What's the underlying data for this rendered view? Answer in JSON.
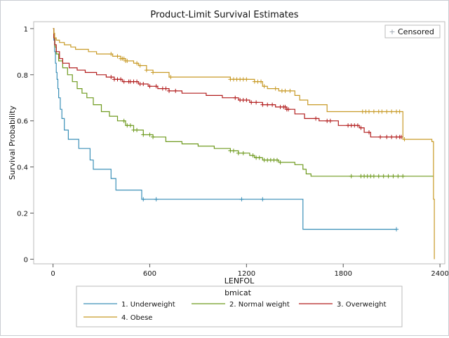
{
  "chart_data": {
    "type": "line",
    "step": true,
    "title": "Product-Limit Survival Estimates",
    "xlabel": "LENFOL",
    "ylabel": "Survival Probability",
    "xlim": [
      -120,
      2430
    ],
    "ylim": [
      -0.02,
      1.03
    ],
    "xticks": [
      0,
      600,
      1200,
      1800,
      2400
    ],
    "xtick_labels": [
      "0",
      "600",
      "1200",
      "1800",
      "2400"
    ],
    "yticks": [
      0,
      0.2,
      0.4,
      0.6,
      0.8,
      1
    ],
    "ytick_labels": [
      "0",
      "0.2",
      "0.4",
      "0.6",
      "0.8",
      "1"
    ],
    "grid": false,
    "censored_legend": "Censored",
    "legend_title": "bmicat",
    "legend_position": "bottom",
    "series": [
      {
        "name": "1. Underweight",
        "color": "#3a8fb7",
        "points": [
          [
            0,
            1
          ],
          [
            5,
            0.95
          ],
          [
            10,
            0.9
          ],
          [
            15,
            0.85
          ],
          [
            20,
            0.81
          ],
          [
            25,
            0.78
          ],
          [
            30,
            0.74
          ],
          [
            35,
            0.7
          ],
          [
            45,
            0.65
          ],
          [
            55,
            0.61
          ],
          [
            70,
            0.56
          ],
          [
            95,
            0.52
          ],
          [
            160,
            0.48
          ],
          [
            230,
            0.43
          ],
          [
            250,
            0.39
          ],
          [
            360,
            0.35
          ],
          [
            390,
            0.3
          ],
          [
            550,
            0.26
          ],
          [
            1550,
            0.13
          ],
          [
            2130,
            0.13
          ]
        ],
        "censored": [
          560,
          640,
          1170,
          1300,
          2130
        ]
      },
      {
        "name": "2. Normal weight",
        "color": "#6e9a1e",
        "points": [
          [
            0,
            1
          ],
          [
            5,
            0.96
          ],
          [
            12,
            0.92
          ],
          [
            20,
            0.89
          ],
          [
            35,
            0.86
          ],
          [
            60,
            0.83
          ],
          [
            90,
            0.8
          ],
          [
            120,
            0.77
          ],
          [
            150,
            0.74
          ],
          [
            180,
            0.72
          ],
          [
            210,
            0.7
          ],
          [
            250,
            0.67
          ],
          [
            300,
            0.64
          ],
          [
            350,
            0.62
          ],
          [
            400,
            0.6
          ],
          [
            450,
            0.58
          ],
          [
            500,
            0.56
          ],
          [
            560,
            0.54
          ],
          [
            620,
            0.53
          ],
          [
            700,
            0.51
          ],
          [
            800,
            0.5
          ],
          [
            900,
            0.49
          ],
          [
            1000,
            0.48
          ],
          [
            1100,
            0.47
          ],
          [
            1150,
            0.46
          ],
          [
            1220,
            0.45
          ],
          [
            1250,
            0.44
          ],
          [
            1300,
            0.43
          ],
          [
            1400,
            0.42
          ],
          [
            1500,
            0.41
          ],
          [
            1550,
            0.39
          ],
          [
            1570,
            0.37
          ],
          [
            1600,
            0.36
          ],
          [
            2360,
            0.36
          ]
        ],
        "censored": [
          440,
          460,
          480,
          500,
          520,
          560,
          600,
          620,
          1100,
          1120,
          1150,
          1180,
          1240,
          1260,
          1280,
          1310,
          1330,
          1350,
          1370,
          1390,
          1410,
          1850,
          1910,
          1930,
          1950,
          1970,
          1990,
          2020,
          2050,
          2080,
          2110,
          2140,
          2170
        ]
      },
      {
        "name": "3. Overweight",
        "color": "#b21d1d",
        "points": [
          [
            0,
            1
          ],
          [
            5,
            0.96
          ],
          [
            10,
            0.93
          ],
          [
            20,
            0.9
          ],
          [
            40,
            0.87
          ],
          [
            60,
            0.85
          ],
          [
            100,
            0.83
          ],
          [
            150,
            0.82
          ],
          [
            200,
            0.81
          ],
          [
            270,
            0.8
          ],
          [
            330,
            0.79
          ],
          [
            380,
            0.78
          ],
          [
            430,
            0.77
          ],
          [
            530,
            0.76
          ],
          [
            590,
            0.75
          ],
          [
            650,
            0.74
          ],
          [
            720,
            0.73
          ],
          [
            800,
            0.72
          ],
          [
            950,
            0.71
          ],
          [
            1050,
            0.7
          ],
          [
            1150,
            0.69
          ],
          [
            1220,
            0.68
          ],
          [
            1300,
            0.67
          ],
          [
            1380,
            0.66
          ],
          [
            1450,
            0.65
          ],
          [
            1500,
            0.63
          ],
          [
            1560,
            0.61
          ],
          [
            1650,
            0.6
          ],
          [
            1770,
            0.58
          ],
          [
            1900,
            0.57
          ],
          [
            1930,
            0.55
          ],
          [
            1970,
            0.53
          ],
          [
            2160,
            0.53
          ]
        ],
        "censored": [
          360,
          380,
          400,
          420,
          440,
          470,
          480,
          500,
          520,
          540,
          560,
          600,
          640,
          680,
          700,
          720,
          760,
          1130,
          1160,
          1180,
          1200,
          1230,
          1260,
          1300,
          1330,
          1360,
          1410,
          1430,
          1440,
          1450,
          1460,
          1630,
          1700,
          1720,
          1830,
          1850,
          1870,
          1890,
          1910,
          1960,
          2030,
          2070,
          2100,
          2130,
          2150,
          2160
        ]
      },
      {
        "name": "4. Obese",
        "color": "#c89a26",
        "points": [
          [
            0,
            1
          ],
          [
            5,
            0.98
          ],
          [
            10,
            0.96
          ],
          [
            20,
            0.95
          ],
          [
            40,
            0.94
          ],
          [
            70,
            0.93
          ],
          [
            110,
            0.92
          ],
          [
            140,
            0.91
          ],
          [
            220,
            0.9
          ],
          [
            270,
            0.89
          ],
          [
            370,
            0.88
          ],
          [
            420,
            0.87
          ],
          [
            450,
            0.86
          ],
          [
            500,
            0.85
          ],
          [
            530,
            0.84
          ],
          [
            580,
            0.82
          ],
          [
            620,
            0.81
          ],
          [
            720,
            0.79
          ],
          [
            1100,
            0.78
          ],
          [
            1250,
            0.77
          ],
          [
            1300,
            0.75
          ],
          [
            1330,
            0.74
          ],
          [
            1400,
            0.73
          ],
          [
            1500,
            0.71
          ],
          [
            1530,
            0.69
          ],
          [
            1580,
            0.67
          ],
          [
            1700,
            0.64
          ],
          [
            2160,
            0.64
          ],
          [
            2170,
            0.52
          ],
          [
            2350,
            0.51
          ],
          [
            2360,
            0.26
          ],
          [
            2365,
            0
          ]
        ],
        "censored": [
          360,
          400,
          420,
          430,
          440,
          450,
          460,
          520,
          540,
          580,
          620,
          730,
          1100,
          1120,
          1140,
          1160,
          1180,
          1200,
          1250,
          1270,
          1290,
          1310,
          1380,
          1420,
          1440,
          1470,
          1920,
          1940,
          1960,
          1990,
          2020,
          2040,
          2070,
          2100,
          2130,
          2150,
          2180
        ]
      }
    ]
  }
}
